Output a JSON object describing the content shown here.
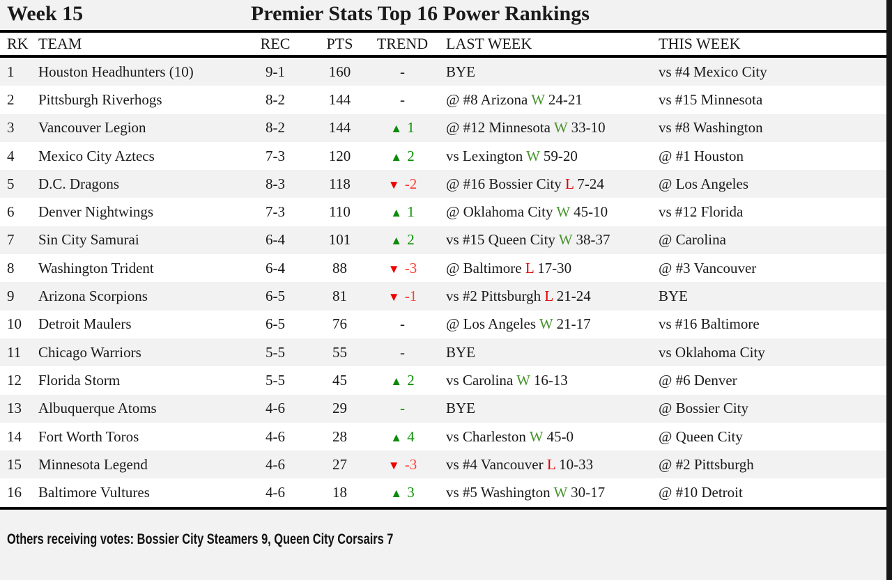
{
  "header": {
    "week_label": "Week 15",
    "title": "Premier Stats Top 16 Power Rankings"
  },
  "table": {
    "columns": {
      "rk": "RK",
      "team": "TEAM",
      "rec": "REC",
      "pts": "PTS",
      "trend": "TREND",
      "last_week": "LAST WEEK",
      "this_week": "THIS WEEK"
    },
    "rows": [
      {
        "rk": "1",
        "team": "Houston Headhunters (10)",
        "rec": "9-1",
        "pts": "160",
        "trend": {
          "dir": "flat",
          "value": "-"
        },
        "last_week": {
          "opponent": "BYE",
          "result": "",
          "score": ""
        },
        "this_week": "vs #4 Mexico City"
      },
      {
        "rk": "2",
        "team": "Pittsburgh Riverhogs",
        "rec": "8-2",
        "pts": "144",
        "trend": {
          "dir": "flat",
          "value": "-"
        },
        "last_week": {
          "opponent": "@ #8 Arizona",
          "result": "W",
          "score": "24-21"
        },
        "this_week": "vs #15 Minnesota"
      },
      {
        "rk": "3",
        "team": "Vancouver Legion",
        "rec": "8-2",
        "pts": "144",
        "trend": {
          "dir": "up",
          "value": "1"
        },
        "last_week": {
          "opponent": "@ #12 Minnesota",
          "result": "W",
          "score": "33-10"
        },
        "this_week": "vs #8 Washington"
      },
      {
        "rk": "4",
        "team": "Mexico City Aztecs",
        "rec": "7-3",
        "pts": "120",
        "trend": {
          "dir": "up",
          "value": "2"
        },
        "last_week": {
          "opponent": "vs Lexington",
          "result": "W",
          "score": "59-20"
        },
        "this_week": "@ #1 Houston"
      },
      {
        "rk": "5",
        "team": "D.C. Dragons",
        "rec": "8-3",
        "pts": "118",
        "trend": {
          "dir": "down",
          "value": "-2"
        },
        "last_week": {
          "opponent": "@ #16 Bossier City",
          "result": "L",
          "score": "7-24"
        },
        "this_week": "@ Los Angeles"
      },
      {
        "rk": "6",
        "team": "Denver Nightwings",
        "rec": "7-3",
        "pts": "110",
        "trend": {
          "dir": "up",
          "value": "1"
        },
        "last_week": {
          "opponent": "@ Oklahoma City",
          "result": "W",
          "score": "45-10"
        },
        "this_week": "vs #12 Florida"
      },
      {
        "rk": "7",
        "team": "Sin City Samurai",
        "rec": "6-4",
        "pts": "101",
        "trend": {
          "dir": "up",
          "value": "2"
        },
        "last_week": {
          "opponent": "vs #15 Queen City",
          "result": "W",
          "score": "38-37"
        },
        "this_week": "@ Carolina"
      },
      {
        "rk": "8",
        "team": "Washington Trident",
        "rec": "6-4",
        "pts": "88",
        "trend": {
          "dir": "down",
          "value": "-3"
        },
        "last_week": {
          "opponent": "@ Baltimore",
          "result": "L",
          "score": "17-30"
        },
        "this_week": "@ #3 Vancouver"
      },
      {
        "rk": "9",
        "team": "Arizona Scorpions",
        "rec": "6-5",
        "pts": "81",
        "trend": {
          "dir": "down",
          "value": "-1"
        },
        "last_week": {
          "opponent": "vs #2 Pittsburgh",
          "result": "L",
          "score": "21-24"
        },
        "this_week": "BYE"
      },
      {
        "rk": "10",
        "team": "Detroit Maulers",
        "rec": "6-5",
        "pts": "76",
        "trend": {
          "dir": "flat",
          "value": "-"
        },
        "last_week": {
          "opponent": "@ Los Angeles",
          "result": "W",
          "score": "21-17"
        },
        "this_week": "vs #16 Baltimore"
      },
      {
        "rk": "11",
        "team": "Chicago Warriors",
        "rec": "5-5",
        "pts": "55",
        "trend": {
          "dir": "flat",
          "value": "-"
        },
        "last_week": {
          "opponent": "BYE",
          "result": "",
          "score": ""
        },
        "this_week": "vs Oklahoma City"
      },
      {
        "rk": "12",
        "team": "Florida Storm",
        "rec": "5-5",
        "pts": "45",
        "trend": {
          "dir": "up",
          "value": "2"
        },
        "last_week": {
          "opponent": "vs Carolina",
          "result": "W",
          "score": "16-13"
        },
        "this_week": "@ #6 Denver"
      },
      {
        "rk": "13",
        "team": "Albuquerque Atoms",
        "rec": "4-6",
        "pts": "29",
        "trend": {
          "dir": "flat-green",
          "value": "-"
        },
        "last_week": {
          "opponent": "BYE",
          "result": "",
          "score": ""
        },
        "this_week": "@ Bossier City"
      },
      {
        "rk": "14",
        "team": "Fort Worth Toros",
        "rec": "4-6",
        "pts": "28",
        "trend": {
          "dir": "up",
          "value": "4"
        },
        "last_week": {
          "opponent": "vs Charleston",
          "result": "W",
          "score": "45-0"
        },
        "this_week": "@ Queen City"
      },
      {
        "rk": "15",
        "team": "Minnesota Legend",
        "rec": "4-6",
        "pts": "27",
        "trend": {
          "dir": "down",
          "value": "-3"
        },
        "last_week": {
          "opponent": "vs #4 Vancouver",
          "result": "L",
          "score": "10-33"
        },
        "this_week": "@ #2 Pittsburgh"
      },
      {
        "rk": "16",
        "team": "Baltimore Vultures",
        "rec": "4-6",
        "pts": "18",
        "trend": {
          "dir": "up",
          "value": "3"
        },
        "last_week": {
          "opponent": "vs #5 Washington",
          "result": "W",
          "score": "30-17"
        },
        "this_week": "@ #10 Detroit"
      }
    ]
  },
  "footer": {
    "others_votes": "Others receiving votes: Bossier City Steamers 9, Queen City Corsairs 7"
  },
  "colors": {
    "trend_up_green": "#0b8a0b",
    "trend_down_red": "#ee0000",
    "win_green": "#48932c",
    "loss_red": "#e00000",
    "row_shade": "#f2f2f2",
    "row_plain": "#ffffff",
    "border_black": "#000000"
  }
}
